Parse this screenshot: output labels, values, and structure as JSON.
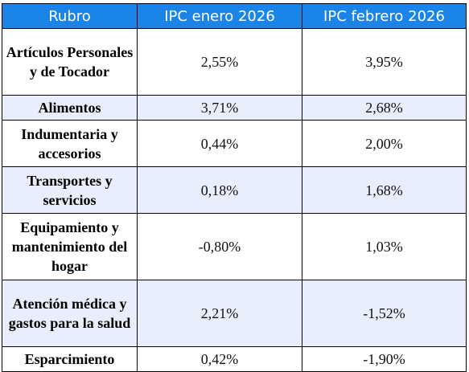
{
  "table": {
    "headers": [
      "Rubro",
      "IPC enero 2026",
      "IPC febrero 2026"
    ],
    "rows": [
      {
        "rubro": "Artículos Personales y de Tocador",
        "enero": "2,55%",
        "febrero": "3,95%"
      },
      {
        "rubro": "Alimentos",
        "enero": "3,71%",
        "febrero": "2,68%"
      },
      {
        "rubro": "Indumentaria y accesorios",
        "enero": "0,44%",
        "febrero": "2,00%"
      },
      {
        "rubro": "Transportes y servicios",
        "enero": "0,18%",
        "febrero": "1,68%"
      },
      {
        "rubro": "Equipamiento y mantenimiento del hogar",
        "enero": "-0,80%",
        "febrero": "1,03%"
      },
      {
        "rubro": "Atención médica y gastos para la salud",
        "enero": "2,21%",
        "febrero": "-1,52%"
      },
      {
        "rubro": "Esparcimiento",
        "enero": "0,42%",
        "febrero": "-1,90%"
      }
    ]
  },
  "colors": {
    "header_bg": "#1b84e8",
    "header_text": "#ffffff",
    "alt_row_bg": "#e8eefb",
    "border": "#000000"
  }
}
